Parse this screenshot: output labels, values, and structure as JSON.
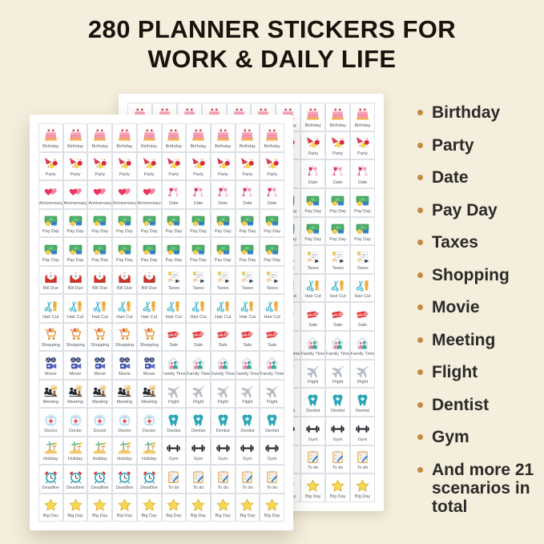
{
  "title": {
    "line1": "280 PLANNER STICKERS FOR",
    "line2": "WORK & DAILY LIFE"
  },
  "features": {
    "items": [
      "Birthday",
      "Party",
      "Date",
      "Pay Day",
      "Taxes",
      "Shopping",
      "Movie",
      "Meeting",
      "Flight",
      "Dentist",
      "Gym",
      "And more 21 scenarios in total"
    ]
  },
  "sheets": {
    "count": 2,
    "columns": 10,
    "cells_per_half": 5,
    "rows": [
      {
        "left": {
          "label": "Birthday",
          "icon": "birthday-cake-icon"
        },
        "right": {
          "label": "Birthday",
          "icon": "birthday-cake-icon"
        }
      },
      {
        "left": {
          "label": "Party",
          "icon": "party-balloons-icon"
        },
        "right": {
          "label": "Party",
          "icon": "party-balloons-icon"
        }
      },
      {
        "left": {
          "label": "Anniversary",
          "icon": "hearts-icon"
        },
        "right": {
          "label": "Date",
          "icon": "wine-glasses-icon"
        }
      },
      {
        "left": {
          "label": "Pay Day",
          "icon": "money-icon"
        },
        "right": {
          "label": "Pay Day",
          "icon": "money-icon"
        }
      },
      {
        "left": {
          "label": "Pay Day",
          "icon": "money-icon"
        },
        "right": {
          "label": "Pay Day",
          "icon": "money-icon"
        }
      },
      {
        "left": {
          "label": "Bill Due",
          "icon": "bill-envelope-icon"
        },
        "right": {
          "label": "Taxes",
          "icon": "tax-receipt-icon"
        }
      },
      {
        "left": {
          "label": "Hair Cut",
          "icon": "scissors-comb-icon"
        },
        "right": {
          "label": "Hair Cut",
          "icon": "scissors-comb-icon"
        }
      },
      {
        "left": {
          "label": "Shopping",
          "icon": "shopping-cart-icon"
        },
        "right": {
          "label": "Sale",
          "icon": "sale-tag-icon"
        }
      },
      {
        "left": {
          "label": "Movie",
          "icon": "movie-projector-icon"
        },
        "right": {
          "label": "Family Time",
          "icon": "family-house-icon"
        }
      },
      {
        "left": {
          "label": "Meeting",
          "icon": "meeting-people-icon"
        },
        "right": {
          "label": "Flight",
          "icon": "airplane-icon"
        }
      },
      {
        "left": {
          "label": "Doctor",
          "icon": "first-aid-kit-icon"
        },
        "right": {
          "label": "Dentist",
          "icon": "tooth-icon"
        }
      },
      {
        "left": {
          "label": "Holiday",
          "icon": "palm-island-icon"
        },
        "right": {
          "label": "Gym",
          "icon": "dumbbell-icon"
        }
      },
      {
        "left": {
          "label": "Deadline",
          "icon": "alarm-clock-icon"
        },
        "right": {
          "label": "To do",
          "icon": "clipboard-icon"
        }
      },
      {
        "left": {
          "label": "Big Day",
          "icon": "star-icon"
        },
        "right": {
          "label": "Big Day",
          "icon": "star-icon"
        }
      }
    ]
  },
  "colors": {
    "background": "#f5eedd",
    "title_text": "#17130d",
    "bullet": "#bf8b3f",
    "list_text": "#2b2a28",
    "sheet_background": "#ffffff",
    "cell_border": "#dce1e7",
    "cell_label": "#555a60"
  }
}
